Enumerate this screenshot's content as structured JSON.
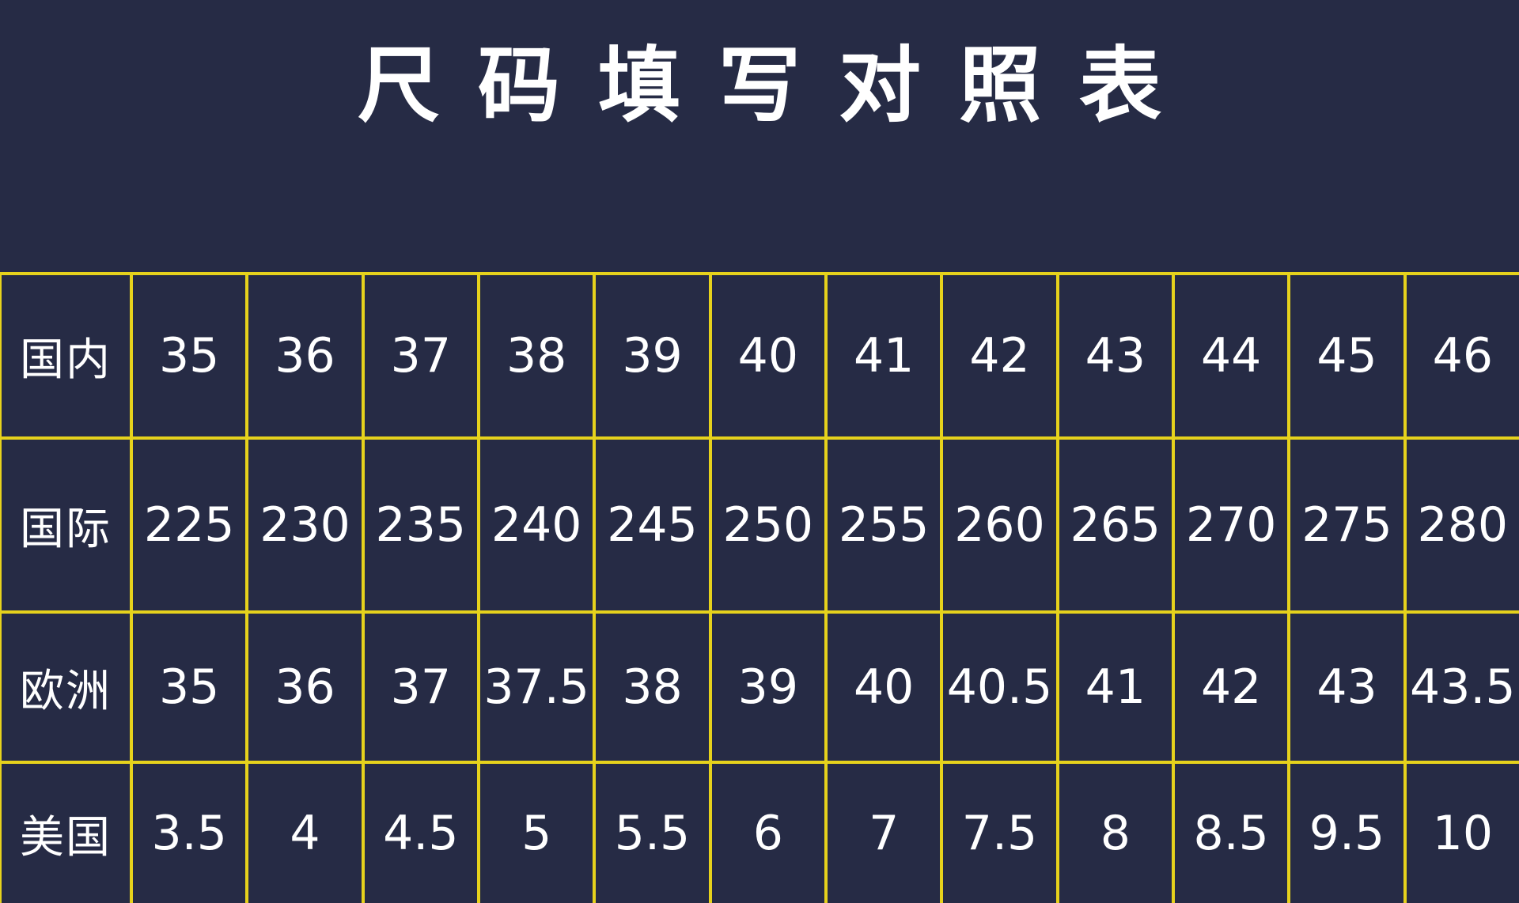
{
  "header": {
    "title": "尺码填写对照表"
  },
  "table": {
    "rows": [
      [
        "国内",
        "35",
        "36",
        "37",
        "38",
        "39",
        "40",
        "41",
        "42",
        "43",
        "44",
        "45",
        "46"
      ],
      [
        "国际",
        "225",
        "230",
        "235",
        "240",
        "245",
        "250",
        "255",
        "260",
        "265",
        "270",
        "275",
        "280"
      ],
      [
        "欧洲",
        "35",
        "36",
        "37",
        "37.5",
        "38",
        "39",
        "40",
        "40.5",
        "41",
        "42",
        "43",
        "43.5"
      ],
      [
        "美国",
        "3.5",
        "4",
        "4.5",
        "5",
        "5.5",
        "6",
        "7",
        "7.5",
        "8",
        "8.5",
        "9.5",
        "10"
      ]
    ]
  }
}
